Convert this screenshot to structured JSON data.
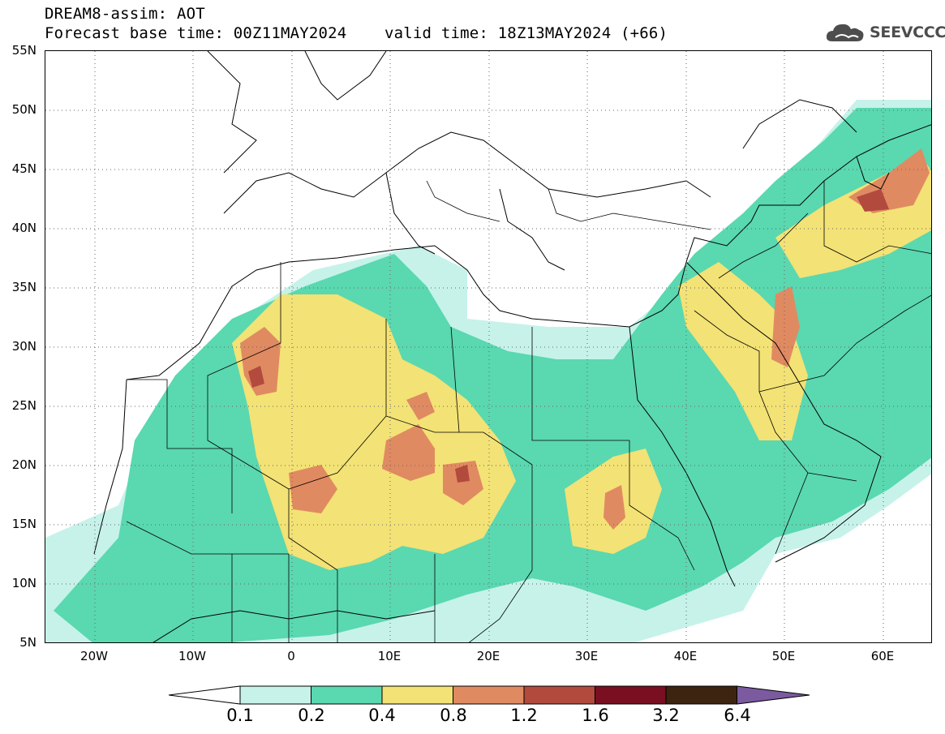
{
  "title": {
    "line1": "DREAM8-assim: AOT",
    "line2": "Forecast base time: 00Z11MAY2024    valid time: 18Z13MAY2024 (+66)"
  },
  "logo": {
    "text": "SEEVCCC",
    "icon": "cloud-icon",
    "color": "#4d4d4d"
  },
  "map": {
    "region": "North Africa, Europe, Middle East",
    "lon_range": [
      -25,
      65
    ],
    "lat_range": [
      5,
      55
    ],
    "lat_labels": [
      "55N",
      "50N",
      "45N",
      "40N",
      "35N",
      "30N",
      "25N",
      "20N",
      "15N",
      "10N",
      "5N"
    ],
    "lon_labels": [
      "20W",
      "10W",
      "0",
      "10E",
      "20E",
      "30E",
      "40E",
      "50E",
      "60E"
    ],
    "grid": "dotted"
  },
  "colorbar": {
    "labels": [
      "0.1",
      "0.2",
      "0.4",
      "0.8",
      "1.2",
      "1.6",
      "3.2",
      "6.4"
    ],
    "colors": [
      "#c6f2ea",
      "#5ad8b0",
      "#f3e275",
      "#e08a62",
      "#b24a3e",
      "#7a0f22",
      "#3c2410",
      "#7b5aa0"
    ],
    "under_color": "#ffffff"
  }
}
